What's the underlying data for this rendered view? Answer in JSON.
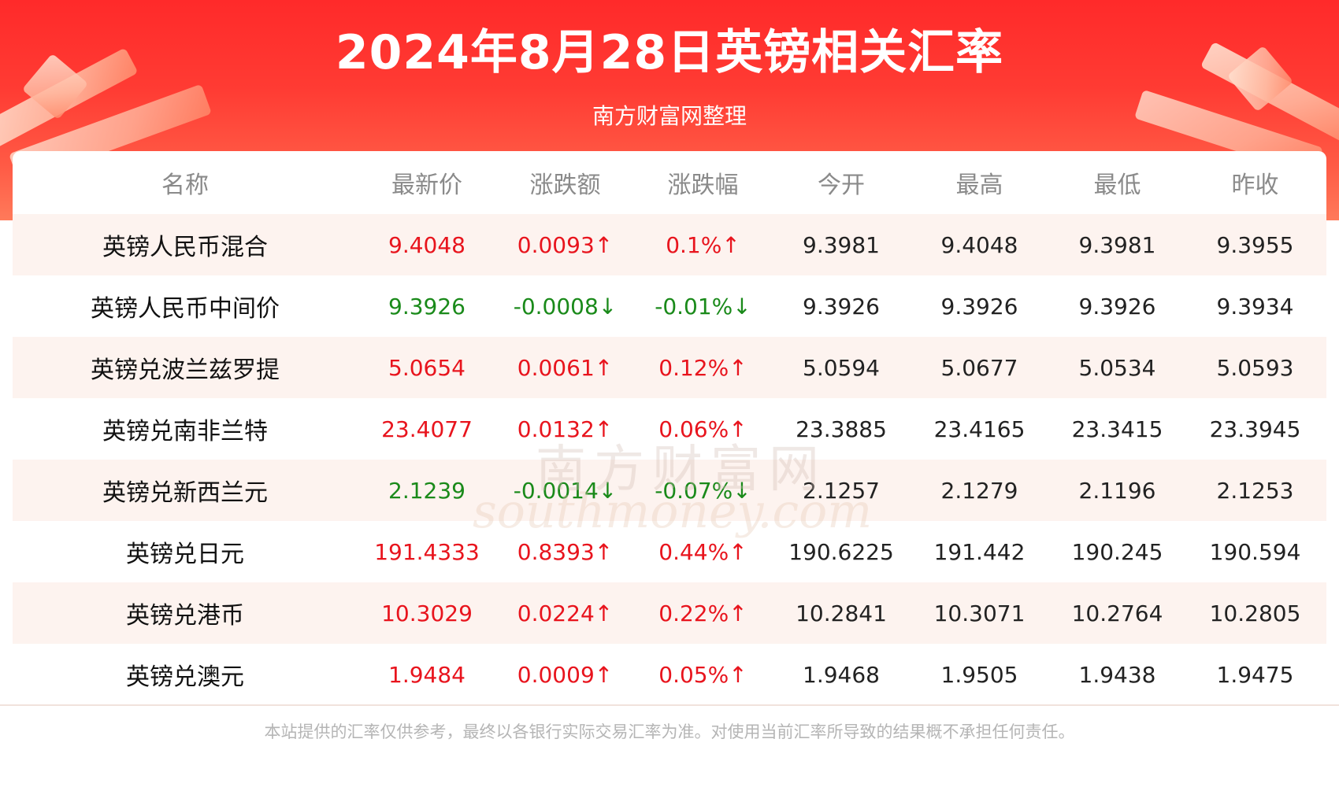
{
  "header": {
    "title": "2024年8月28日英镑相关汇率",
    "subtitle": "南方财富网整理"
  },
  "table": {
    "columns": [
      "名称",
      "最新价",
      "涨跌额",
      "涨跌幅",
      "今开",
      "最高",
      "最低",
      "昨收"
    ],
    "rows": [
      {
        "name": "英镑人民币混合",
        "latest": "9.4048",
        "change": "0.0093↑",
        "pct": "0.1%↑",
        "open": "9.3981",
        "high": "9.4048",
        "low": "9.3981",
        "prev": "9.3955",
        "direction": "up"
      },
      {
        "name": "英镑人民币中间价",
        "latest": "9.3926",
        "change": "-0.0008↓",
        "pct": "-0.01%↓",
        "open": "9.3926",
        "high": "9.3926",
        "low": "9.3926",
        "prev": "9.3934",
        "direction": "down"
      },
      {
        "name": "英镑兑波兰兹罗提",
        "latest": "5.0654",
        "change": "0.0061↑",
        "pct": "0.12%↑",
        "open": "5.0594",
        "high": "5.0677",
        "low": "5.0534",
        "prev": "5.0593",
        "direction": "up"
      },
      {
        "name": "英镑兑南非兰特",
        "latest": "23.4077",
        "change": "0.0132↑",
        "pct": "0.06%↑",
        "open": "23.3885",
        "high": "23.4165",
        "low": "23.3415",
        "prev": "23.3945",
        "direction": "up"
      },
      {
        "name": "英镑兑新西兰元",
        "latest": "2.1239",
        "change": "-0.0014↓",
        "pct": "-0.07%↓",
        "open": "2.1257",
        "high": "2.1279",
        "low": "2.1196",
        "prev": "2.1253",
        "direction": "down"
      },
      {
        "name": "英镑兑日元",
        "latest": "191.4333",
        "change": "0.8393↑",
        "pct": "0.44%↑",
        "open": "190.6225",
        "high": "191.442",
        "low": "190.245",
        "prev": "190.594",
        "direction": "up"
      },
      {
        "name": "英镑兑港币",
        "latest": "10.3029",
        "change": "0.0224↑",
        "pct": "0.22%↑",
        "open": "10.2841",
        "high": "10.3071",
        "low": "10.2764",
        "prev": "10.2805",
        "direction": "up"
      },
      {
        "name": "英镑兑澳元",
        "latest": "1.9484",
        "change": "0.0009↑",
        "pct": "0.05%↑",
        "open": "1.9468",
        "high": "1.9505",
        "low": "1.9438",
        "prev": "1.9475",
        "direction": "up"
      }
    ]
  },
  "watermark": {
    "cn": "南方财富网",
    "en": "southmoney.com"
  },
  "footer": {
    "disclaimer": "本站提供的汇率仅供参考，最终以各银行实际交易汇率为准。对使用当前汇率所导致的结果概不承担任何责任。"
  },
  "colors": {
    "up": "#e8141d",
    "down": "#1a8a1a",
    "banner": "#ff2a2a"
  }
}
